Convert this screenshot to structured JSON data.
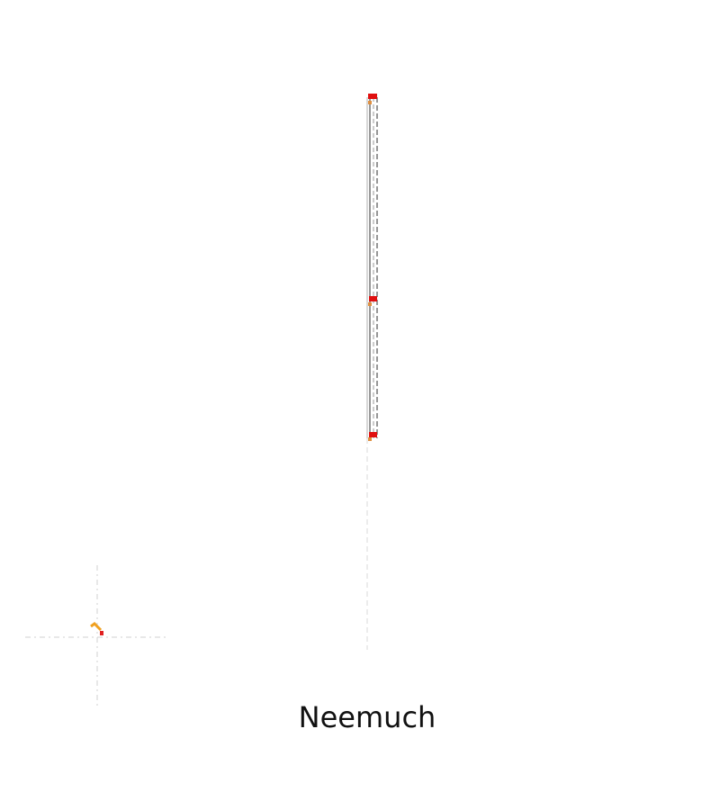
{
  "map": {
    "label": "Neemuch"
  }
}
